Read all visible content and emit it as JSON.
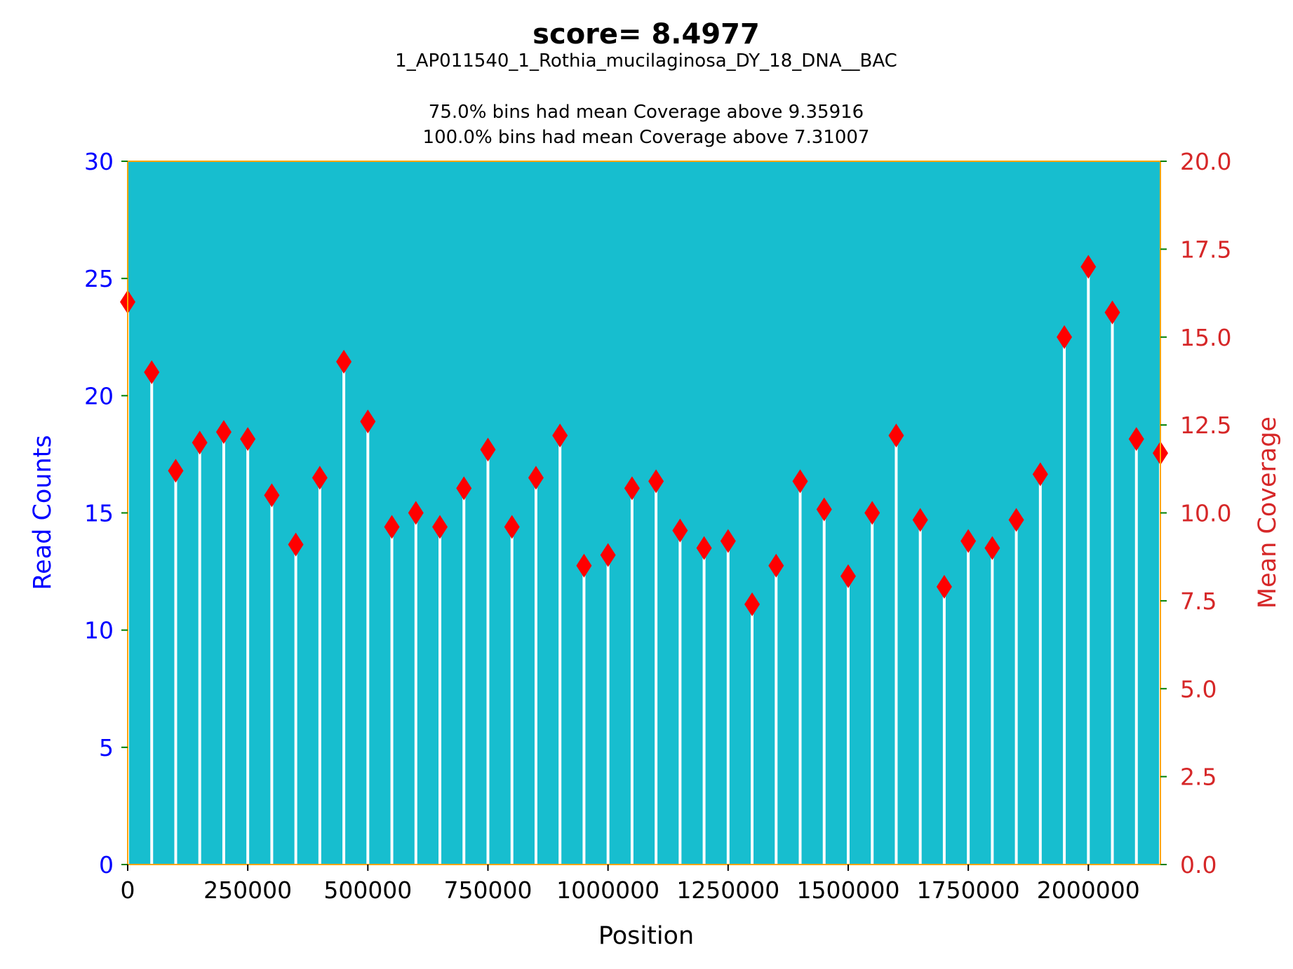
{
  "chart_data": {
    "type": "bar",
    "title": "score= 8.4977",
    "subtitle_lines": [
      "1_AP011540_1_Rothia_mucilaginosa_DY_18_DNA__BAC",
      "",
      "75.0% bins had mean Coverage above 9.35916",
      "100.0% bins had mean Coverage above 7.31007"
    ],
    "xlabel": "Position",
    "ylabel_left": "Read Counts",
    "ylabel_right": "Mean Coverage",
    "xlim": [
      0,
      2150000
    ],
    "ylim_left": [
      0,
      30
    ],
    "ylim_right": [
      0,
      20
    ],
    "x_ticks": [
      0,
      250000,
      500000,
      750000,
      1000000,
      1250000,
      1500000,
      1750000,
      2000000
    ],
    "x_tick_labels": [
      "0",
      "250000",
      "500000",
      "750000",
      "1000000",
      "1250000",
      "1500000",
      "1750000",
      "2000000"
    ],
    "y_left_ticks": [
      0,
      5,
      10,
      15,
      20,
      25,
      30
    ],
    "y_left_tick_labels": [
      "0",
      "5",
      "10",
      "15",
      "20",
      "25",
      "30"
    ],
    "y_right_ticks": [
      0,
      2.5,
      5,
      7.5,
      10,
      12.5,
      15,
      17.5,
      20
    ],
    "y_right_tick_labels": [
      "0.0",
      "2.5",
      "5.0",
      "7.5",
      "10.0",
      "12.5",
      "15.0",
      "17.5",
      "20.0"
    ],
    "grid": false,
    "series": [
      {
        "name": "Mean Coverage",
        "axis": "right",
        "style": "white stems with red diamond markers",
        "x": [
          0,
          50000,
          100000,
          150000,
          200000,
          250000,
          300000,
          350000,
          400000,
          450000,
          500000,
          550000,
          600000,
          650000,
          700000,
          750000,
          800000,
          850000,
          900000,
          950000,
          1000000,
          1050000,
          1100000,
          1150000,
          1200000,
          1250000,
          1300000,
          1350000,
          1400000,
          1450000,
          1500000,
          1550000,
          1600000,
          1650000,
          1700000,
          1750000,
          1800000,
          1850000,
          1900000,
          1950000,
          2000000,
          2050000,
          2100000,
          2150000
        ],
        "values": [
          16.0,
          14.0,
          11.2,
          12.0,
          12.3,
          12.1,
          10.5,
          9.1,
          11.0,
          14.3,
          12.6,
          9.6,
          10.0,
          9.6,
          10.7,
          11.8,
          9.6,
          11.0,
          12.2,
          8.5,
          8.8,
          10.7,
          10.9,
          9.5,
          9.0,
          9.2,
          7.4,
          8.5,
          10.9,
          10.1,
          8.2,
          10.0,
          12.2,
          9.8,
          7.9,
          9.2,
          9.0,
          9.8,
          11.1,
          15.0,
          17.0,
          15.7,
          12.1,
          11.7
        ]
      }
    ],
    "colors": {
      "plot_background": "#17becf",
      "frame": "#ffa500",
      "stem": "#ffffff",
      "marker": "#ff0000",
      "left_axis_text": "#0000ff",
      "right_axis_text": "#d62728",
      "tick_marks": "#008000"
    }
  }
}
